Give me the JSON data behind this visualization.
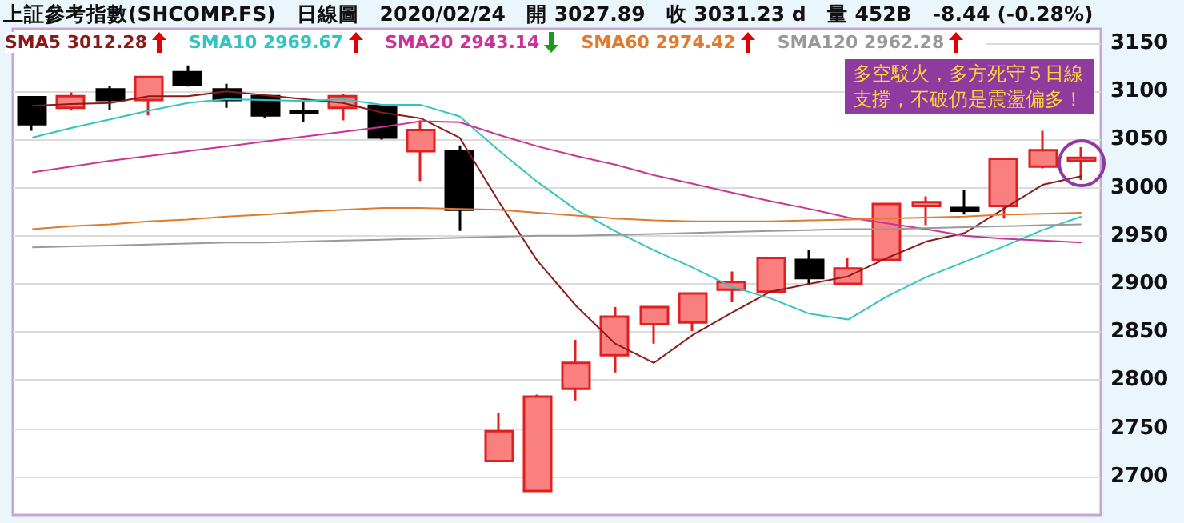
{
  "chart_data": {
    "type": "candlestick",
    "title": "上証參考指數(SHCOMP.FS)　日線圖　2020/02/24　開 3027.89　收 3031.23 d　量 452B　-8.44 (-0.28%)",
    "categories": [
      null,
      null,
      null,
      null,
      null,
      null,
      null,
      null,
      null,
      null,
      null,
      null,
      null,
      null,
      null,
      null,
      null,
      null,
      null,
      null,
      null,
      null,
      null,
      null,
      null,
      null,
      null,
      null
    ],
    "ohlc": [
      [
        3094,
        3094,
        3059,
        3066
      ],
      [
        3083,
        3099,
        3080,
        3095
      ],
      [
        3102,
        3106,
        3081,
        3091
      ],
      [
        3091,
        3115,
        3075,
        3115
      ],
      [
        3120,
        3127,
        3105,
        3107
      ],
      [
        3102,
        3108,
        3083,
        3091
      ],
      [
        3095,
        3095,
        3072,
        3075
      ],
      [
        3079,
        3090,
        3068,
        3078
      ],
      [
        3083,
        3097,
        3070,
        3095
      ],
      [
        3085,
        3085,
        3050,
        3052
      ],
      [
        3038,
        3070,
        3007,
        3060
      ],
      [
        3038,
        3044,
        2955,
        2977
      ],
      [
        2716,
        2766,
        2716,
        2747
      ],
      [
        2685,
        2785,
        2685,
        2783
      ],
      [
        2791,
        2842,
        2779,
        2818
      ],
      [
        2826,
        2876,
        2808,
        2866
      ],
      [
        2858,
        2877,
        2838,
        2876
      ],
      [
        2860,
        2891,
        2851,
        2890
      ],
      [
        2894,
        2913,
        2881,
        2902
      ],
      [
        2892,
        2927,
        2891,
        2927
      ],
      [
        2925,
        2935,
        2899,
        2906
      ],
      [
        2900,
        2927,
        2899,
        2916
      ],
      [
        2925,
        2984,
        2924,
        2983
      ],
      [
        2981,
        2991,
        2961,
        2985
      ],
      [
        2979,
        2998,
        2972,
        2976
      ],
      [
        2981,
        3031,
        2968,
        3030
      ],
      [
        3022,
        3059,
        3020,
        3039
      ],
      [
        3028,
        3042,
        3008,
        3031
      ]
    ],
    "series": [
      {
        "name": "SMA5 3012.28",
        "type": "line",
        "color": "#8b1a1a",
        "values": [
          3085,
          3087,
          3088,
          3095,
          3095,
          3100,
          3096,
          3092,
          3088,
          3078,
          3072,
          3052,
          2986,
          2924,
          2877,
          2838,
          2818,
          2847,
          2870,
          2892,
          2900,
          2908,
          2927,
          2944,
          2953,
          2978,
          3003,
          3012
        ]
      },
      {
        "name": "SMA10 2969.67",
        "type": "line",
        "color": "#33c3c3",
        "values": [
          3052,
          3062,
          3071,
          3080,
          3088,
          3092,
          3091,
          3090,
          3092,
          3086,
          3086,
          3074,
          3039,
          3006,
          2977,
          2955,
          2935,
          2917,
          2897,
          2885,
          2869,
          2863,
          2887,
          2907,
          2923,
          2939,
          2956,
          2970
        ]
      },
      {
        "name": "SMA20 2943.14",
        "type": "line",
        "color": "#cc3399",
        "values": [
          3016,
          3022,
          3028,
          3033,
          3038,
          3043,
          3048,
          3053,
          3058,
          3063,
          3069,
          3068,
          3055,
          3043,
          3033,
          3024,
          3013,
          3004,
          2995,
          2986,
          2978,
          2969,
          2963,
          2957,
          2950,
          2947,
          2945,
          2943
        ]
      },
      {
        "name": "SMA60 2974.42",
        "type": "line",
        "color": "#e07a2e",
        "values": [
          2957,
          2960,
          2962,
          2965,
          2967,
          2970,
          2972,
          2975,
          2977,
          2979,
          2979,
          2978,
          2977,
          2974,
          2971,
          2968,
          2966,
          2965,
          2965,
          2965,
          2966,
          2967,
          2968,
          2969,
          2970,
          2972,
          2973,
          2974
        ]
      },
      {
        "name": "SMA120 2962.28",
        "type": "line",
        "color": "#999999",
        "values": [
          2938,
          2939,
          2940,
          2941,
          2942,
          2943,
          2943,
          2944,
          2945,
          2946,
          2947,
          2948,
          2949,
          2950,
          2950,
          2951,
          2952,
          2953,
          2954,
          2955,
          2956,
          2957,
          2957,
          2958,
          2959,
          2960,
          2961,
          2962
        ]
      }
    ],
    "ylim": [
      2660,
      3165
    ],
    "yticks": [
      2700,
      2750,
      2800,
      2850,
      2900,
      2950,
      3000,
      3050,
      3100,
      3150
    ],
    "grid": "y",
    "legend": "top left",
    "tick_labels": "y",
    "marker": "none",
    "annotations": [
      "多空駁火，多方死守５日線支撐，不破仍是震盪偏多！"
    ]
  }
}
